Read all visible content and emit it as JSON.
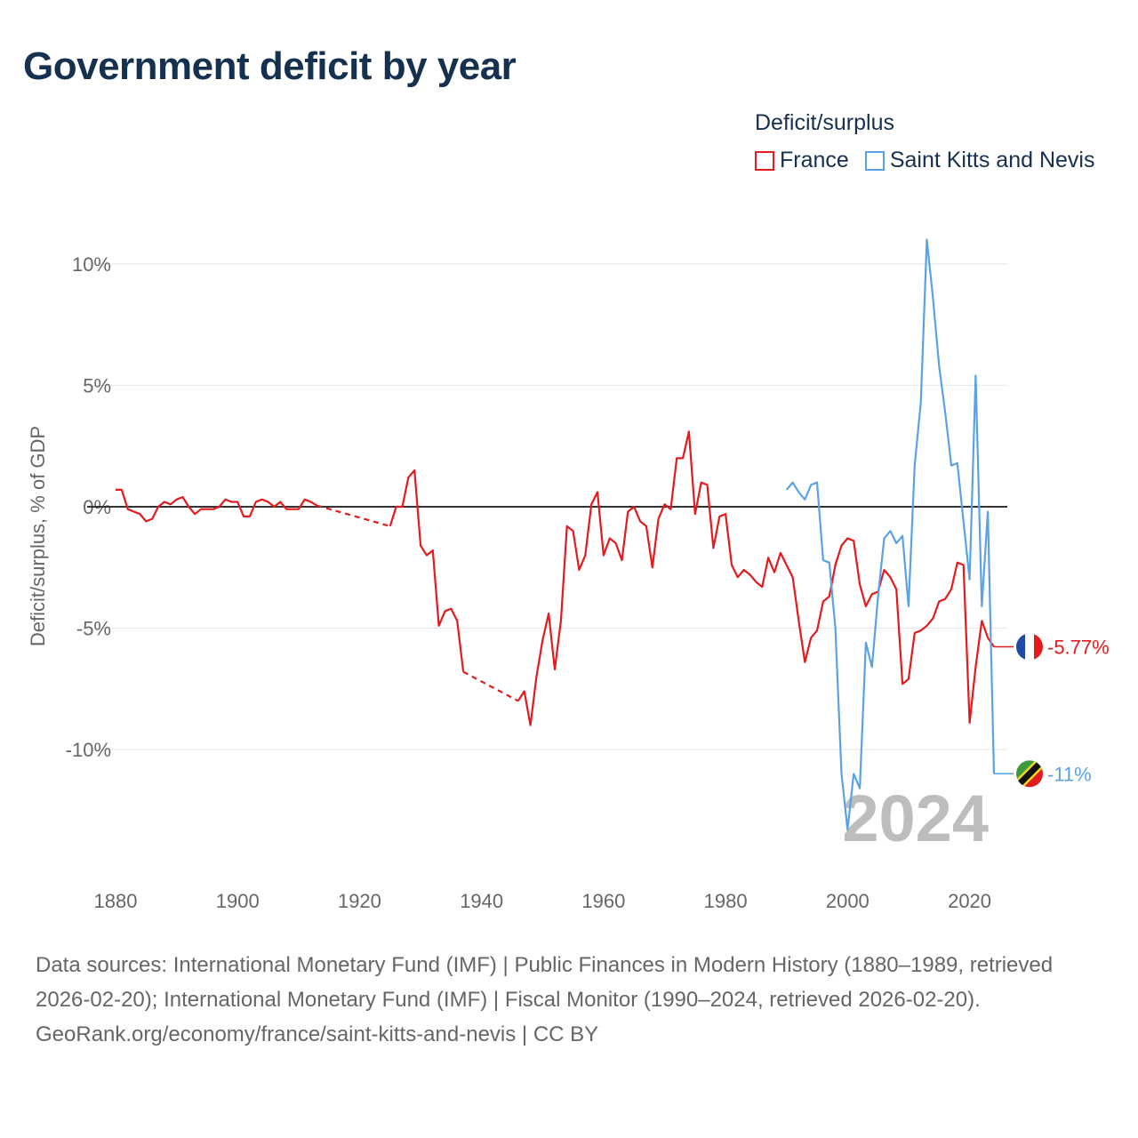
{
  "chart_data": {
    "type": "line",
    "title": "Government deficit by year",
    "ylabel": "Deficit/surplus, % of GDP",
    "xlim": [
      1880,
      2024
    ],
    "ylim": [
      -14.5,
      11.5
    ],
    "x_ticks": [
      1880,
      1900,
      1920,
      1940,
      1960,
      1980,
      2000,
      2020
    ],
    "y_ticks": [
      10,
      5,
      0,
      -5,
      -10
    ],
    "y_tick_labels": [
      "10%",
      "5%",
      "0%",
      "-5%",
      "-10%"
    ],
    "legend_title": "Deficit/surplus",
    "year_watermark": "2024",
    "series": [
      {
        "name": "France",
        "color": "#e41a1c",
        "end_label": "-5.77%",
        "gaps": [
          [
            1913,
            1925
          ],
          [
            1937,
            1946
          ]
        ],
        "points": [
          [
            1880,
            0.7
          ],
          [
            1881,
            0.7
          ],
          [
            1882,
            -0.1
          ],
          [
            1883,
            -0.2
          ],
          [
            1884,
            -0.3
          ],
          [
            1885,
            -0.6
          ],
          [
            1886,
            -0.5
          ],
          [
            1887,
            0.0
          ],
          [
            1888,
            0.2
          ],
          [
            1889,
            0.1
          ],
          [
            1890,
            0.3
          ],
          [
            1891,
            0.4
          ],
          [
            1892,
            0.0
          ],
          [
            1893,
            -0.3
          ],
          [
            1894,
            -0.1
          ],
          [
            1895,
            -0.1
          ],
          [
            1896,
            -0.1
          ],
          [
            1897,
            0.0
          ],
          [
            1898,
            0.3
          ],
          [
            1899,
            0.2
          ],
          [
            1900,
            0.2
          ],
          [
            1901,
            -0.4
          ],
          [
            1902,
            -0.4
          ],
          [
            1903,
            0.2
          ],
          [
            1904,
            0.3
          ],
          [
            1905,
            0.2
          ],
          [
            1906,
            0.0
          ],
          [
            1907,
            0.2
          ],
          [
            1908,
            -0.1
          ],
          [
            1909,
            -0.1
          ],
          [
            1910,
            -0.1
          ],
          [
            1911,
            0.3
          ],
          [
            1912,
            0.2
          ],
          [
            1913,
            0.05
          ],
          [
            1925,
            -0.8
          ],
          [
            1926,
            0.0
          ],
          [
            1927,
            0.0
          ],
          [
            1928,
            1.2
          ],
          [
            1929,
            1.5
          ],
          [
            1930,
            -1.6
          ],
          [
            1931,
            -2.0
          ],
          [
            1932,
            -1.8
          ],
          [
            1933,
            -4.9
          ],
          [
            1934,
            -4.3
          ],
          [
            1935,
            -4.2
          ],
          [
            1936,
            -4.7
          ],
          [
            1937,
            -6.8
          ],
          [
            1946,
            -8.0
          ],
          [
            1947,
            -7.6
          ],
          [
            1948,
            -9.0
          ],
          [
            1949,
            -7.0
          ],
          [
            1950,
            -5.5
          ],
          [
            1951,
            -4.4
          ],
          [
            1952,
            -6.7
          ],
          [
            1953,
            -4.7
          ],
          [
            1954,
            -0.8
          ],
          [
            1955,
            -1.0
          ],
          [
            1956,
            -2.6
          ],
          [
            1957,
            -2.0
          ],
          [
            1958,
            0.1
          ],
          [
            1959,
            0.6
          ],
          [
            1960,
            -2.0
          ],
          [
            1961,
            -1.3
          ],
          [
            1962,
            -1.5
          ],
          [
            1963,
            -2.2
          ],
          [
            1964,
            -0.2
          ],
          [
            1965,
            0.0
          ],
          [
            1966,
            -0.6
          ],
          [
            1967,
            -0.8
          ],
          [
            1968,
            -2.5
          ],
          [
            1969,
            -0.5
          ],
          [
            1970,
            0.1
          ],
          [
            1971,
            -0.1
          ],
          [
            1972,
            2.0
          ],
          [
            1973,
            2.0
          ],
          [
            1974,
            3.1
          ],
          [
            1975,
            -0.3
          ],
          [
            1976,
            1.0
          ],
          [
            1977,
            0.9
          ],
          [
            1978,
            -1.7
          ],
          [
            1979,
            -0.4
          ],
          [
            1980,
            -0.3
          ],
          [
            1981,
            -2.4
          ],
          [
            1982,
            -2.9
          ],
          [
            1983,
            -2.6
          ],
          [
            1984,
            -2.8
          ],
          [
            1985,
            -3.1
          ],
          [
            1986,
            -3.3
          ],
          [
            1987,
            -2.1
          ],
          [
            1988,
            -2.7
          ],
          [
            1989,
            -1.9
          ],
          [
            1990,
            -2.4
          ],
          [
            1991,
            -2.9
          ],
          [
            1992,
            -4.7
          ],
          [
            1993,
            -6.4
          ],
          [
            1994,
            -5.4
          ],
          [
            1995,
            -5.1
          ],
          [
            1996,
            -3.9
          ],
          [
            1997,
            -3.7
          ],
          [
            1998,
            -2.4
          ],
          [
            1999,
            -1.6
          ],
          [
            2000,
            -1.3
          ],
          [
            2001,
            -1.4
          ],
          [
            2002,
            -3.2
          ],
          [
            2003,
            -4.1
          ],
          [
            2004,
            -3.6
          ],
          [
            2005,
            -3.5
          ],
          [
            2006,
            -2.6
          ],
          [
            2007,
            -2.9
          ],
          [
            2008,
            -3.4
          ],
          [
            2009,
            -7.3
          ],
          [
            2010,
            -7.1
          ],
          [
            2011,
            -5.2
          ],
          [
            2012,
            -5.1
          ],
          [
            2013,
            -4.9
          ],
          [
            2014,
            -4.6
          ],
          [
            2015,
            -3.9
          ],
          [
            2016,
            -3.8
          ],
          [
            2017,
            -3.4
          ],
          [
            2018,
            -2.3
          ],
          [
            2019,
            -2.4
          ],
          [
            2020,
            -8.9
          ],
          [
            2021,
            -6.6
          ],
          [
            2022,
            -4.7
          ],
          [
            2023,
            -5.4
          ],
          [
            2024,
            -5.77
          ]
        ]
      },
      {
        "name": "Saint Kitts and Nevis",
        "color": "#5aa2e5",
        "end_label": "-11%",
        "gaps": [],
        "points": [
          [
            1990,
            0.7
          ],
          [
            1991,
            1.0
          ],
          [
            1992,
            0.6
          ],
          [
            1993,
            0.3
          ],
          [
            1994,
            0.9
          ],
          [
            1995,
            1.0
          ],
          [
            1996,
            -2.2
          ],
          [
            1997,
            -2.3
          ],
          [
            1998,
            -5.0
          ],
          [
            1999,
            -11.0
          ],
          [
            2000,
            -13.3
          ],
          [
            2001,
            -11.0
          ],
          [
            2002,
            -11.6
          ],
          [
            2003,
            -5.6
          ],
          [
            2004,
            -6.6
          ],
          [
            2005,
            -3.7
          ],
          [
            2006,
            -1.3
          ],
          [
            2007,
            -1.0
          ],
          [
            2008,
            -1.5
          ],
          [
            2009,
            -1.2
          ],
          [
            2010,
            -4.1
          ],
          [
            2011,
            1.7
          ],
          [
            2012,
            4.3
          ],
          [
            2013,
            11.0
          ],
          [
            2014,
            8.6
          ],
          [
            2015,
            5.8
          ],
          [
            2016,
            3.9
          ],
          [
            2017,
            1.7
          ],
          [
            2018,
            1.8
          ],
          [
            2019,
            -0.6
          ],
          [
            2020,
            -3.0
          ],
          [
            2021,
            5.4
          ],
          [
            2022,
            -4.1
          ],
          [
            2023,
            -0.2
          ],
          [
            2024,
            -11.0
          ]
        ]
      }
    ]
  },
  "footer": {
    "sources": "Data sources: International Monetary Fund (IMF) | Public Finances in Modern History (1880–1989, retrieved 2026-02-20); International Monetary Fund (IMF) | Fiscal Monitor (1990–2024, retrieved 2026-02-20).",
    "attribution": "GeoRank.org/economy/france/saint-kitts-and-nevis | CC BY"
  }
}
